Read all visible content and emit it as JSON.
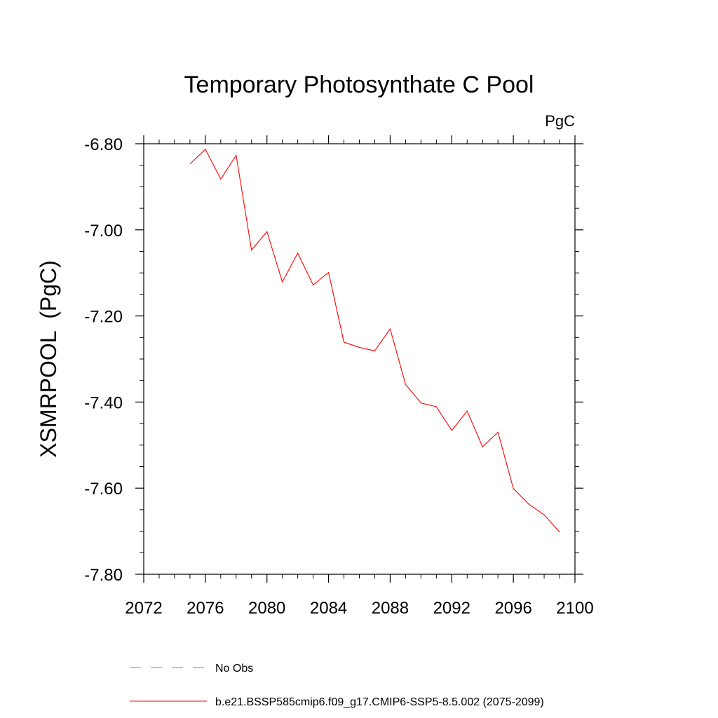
{
  "chart_data": {
    "type": "line",
    "title": "Temporary Photosynthate C Pool",
    "units": "PgC",
    "xlabel": "",
    "ylabel": "XSMRPOOL  (PgC)",
    "xlim": [
      2072,
      2100
    ],
    "ylim": [
      -7.8,
      -6.8
    ],
    "x_ticks": [
      2072,
      2076,
      2080,
      2084,
      2088,
      2092,
      2096,
      2100
    ],
    "x_tick_labels": [
      "2072",
      "2076",
      "2080",
      "2084",
      "2088",
      "2092",
      "2096",
      "2100"
    ],
    "y_ticks": [
      -6.8,
      -7.0,
      -7.2,
      -7.4,
      -7.6,
      -7.8
    ],
    "y_tick_labels": [
      "-6.80",
      "-7.00",
      "-7.20",
      "-7.40",
      "-7.60",
      "-7.80"
    ],
    "y_minor_step": 0.05,
    "x_minor_step": 1,
    "grid": false,
    "legend_position": "bottom",
    "series": [
      {
        "name": "b.e21.BSSP585cmip6.f09_g17.CMIP6-SSP5-8.5.002 (2075-2099)",
        "color": "#ff0000",
        "style": "solid",
        "x": [
          2075,
          2076,
          2077,
          2078,
          2079,
          2080,
          2081,
          2082,
          2083,
          2084,
          2085,
          2086,
          2087,
          2088,
          2089,
          2090,
          2091,
          2092,
          2093,
          2094,
          2095,
          2096,
          2097,
          2098,
          2099
        ],
        "y": [
          -6.847,
          -6.813,
          -6.882,
          -6.827,
          -7.047,
          -7.004,
          -7.121,
          -7.054,
          -7.128,
          -7.099,
          -7.261,
          -7.273,
          -7.281,
          -7.23,
          -7.359,
          -7.402,
          -7.411,
          -7.466,
          -7.421,
          -7.504,
          -7.47,
          -7.601,
          -7.637,
          -7.662,
          -7.702
        ]
      },
      {
        "name": "No Obs",
        "color": "#7b7bcf",
        "style": "dashed",
        "x": [],
        "y": []
      }
    ]
  }
}
